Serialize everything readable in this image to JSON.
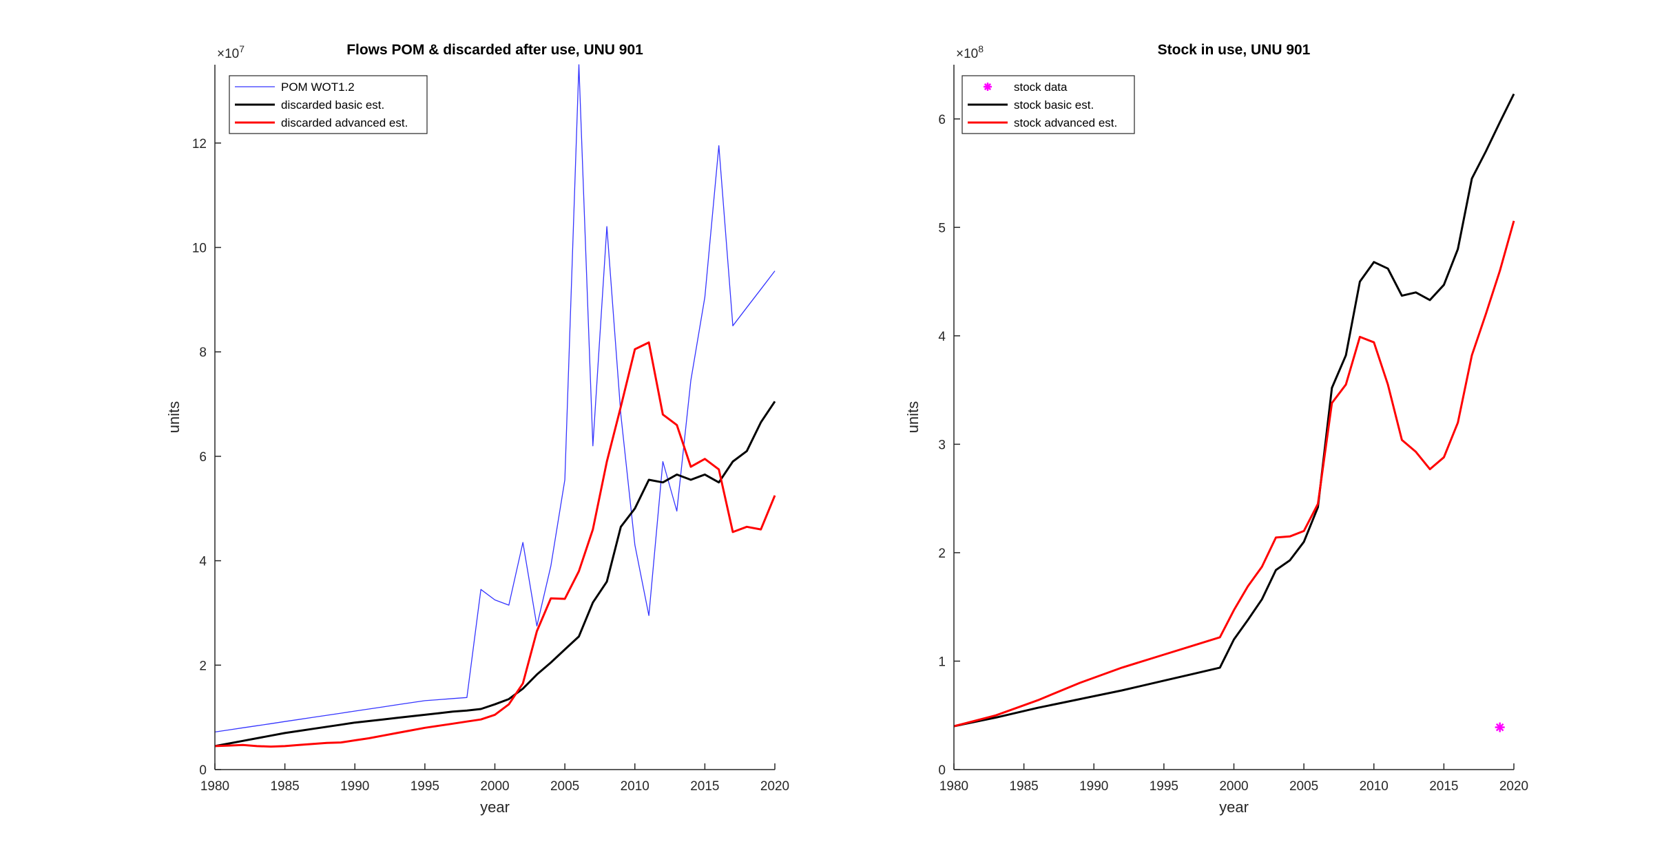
{
  "chart_data": [
    {
      "type": "line",
      "title": "Flows POM & discarded after use, UNU 901",
      "xlabel": "year",
      "ylabel": "units",
      "y_exponent_label": "×10",
      "y_exponent": "7",
      "xlim": [
        1980,
        2020
      ],
      "ylim": [
        0,
        13.5
      ],
      "xticks": [
        "1980",
        "1985",
        "1990",
        "1995",
        "2000",
        "2005",
        "2010",
        "2015",
        "2020"
      ],
      "yticks": [
        "0",
        "2",
        "4",
        "6",
        "8",
        "10",
        "12"
      ],
      "legend_position": "top-left",
      "series": [
        {
          "name": "POM WOT1.2",
          "color": "#3333ff",
          "width": 1.3,
          "x": [
            1980,
            1981,
            1982,
            1983,
            1984,
            1985,
            1986,
            1987,
            1988,
            1989,
            1990,
            1991,
            1992,
            1993,
            1994,
            1995,
            1996,
            1997,
            1998,
            1999,
            2000,
            2001,
            2002,
            2003,
            2004,
            2005,
            2006,
            2007,
            2008,
            2009,
            2010,
            2011,
            2012,
            2013,
            2014,
            2015,
            2016,
            2017,
            2018,
            2019,
            2020
          ],
          "values": [
            0.72,
            0.76,
            0.8,
            0.84,
            0.88,
            0.92,
            0.96,
            1.0,
            1.04,
            1.08,
            1.12,
            1.16,
            1.2,
            1.24,
            1.28,
            1.32,
            1.34,
            1.36,
            1.38,
            3.45,
            3.25,
            3.15,
            4.35,
            2.75,
            3.9,
            5.55,
            13.5,
            6.2,
            10.4,
            6.8,
            4.3,
            2.95,
            5.9,
            4.95,
            7.45,
            9.05,
            11.95,
            8.5,
            8.85,
            9.2,
            9.55
          ]
        },
        {
          "name": "discarded basic est.",
          "color": "#000000",
          "width": 3,
          "x": [
            1980,
            1981,
            1982,
            1983,
            1984,
            1985,
            1986,
            1987,
            1988,
            1989,
            1990,
            1991,
            1992,
            1993,
            1994,
            1995,
            1996,
            1997,
            1998,
            1999,
            2000,
            2001,
            2002,
            2003,
            2004,
            2005,
            2006,
            2007,
            2008,
            2009,
            2010,
            2011,
            2012,
            2013,
            2014,
            2015,
            2016,
            2017,
            2018,
            2019,
            2020
          ],
          "values": [
            0.45,
            0.5,
            0.55,
            0.6,
            0.65,
            0.7,
            0.74,
            0.78,
            0.82,
            0.86,
            0.9,
            0.93,
            0.96,
            0.99,
            1.02,
            1.05,
            1.08,
            1.11,
            1.13,
            1.16,
            1.25,
            1.35,
            1.55,
            1.82,
            2.05,
            2.3,
            2.55,
            3.2,
            3.6,
            4.65,
            5.0,
            5.55,
            5.5,
            5.65,
            5.55,
            5.65,
            5.5,
            5.9,
            6.1,
            6.65,
            7.05
          ]
        },
        {
          "name": "discarded advanced est.",
          "color": "#ff0000",
          "width": 3,
          "x": [
            1980,
            1981,
            1982,
            1983,
            1984,
            1985,
            1986,
            1987,
            1988,
            1989,
            1990,
            1991,
            1992,
            1993,
            1994,
            1995,
            1996,
            1997,
            1998,
            1999,
            2000,
            2001,
            2002,
            2003,
            2004,
            2005,
            2006,
            2007,
            2008,
            2009,
            2010,
            2011,
            2012,
            2013,
            2014,
            2015,
            2016,
            2017,
            2018,
            2019,
            2020
          ],
          "values": [
            0.45,
            0.46,
            0.47,
            0.45,
            0.44,
            0.45,
            0.47,
            0.49,
            0.51,
            0.52,
            0.56,
            0.6,
            0.65,
            0.7,
            0.75,
            0.8,
            0.84,
            0.88,
            0.92,
            0.96,
            1.05,
            1.25,
            1.65,
            2.65,
            3.28,
            3.27,
            3.8,
            4.6,
            5.9,
            6.95,
            8.05,
            8.18,
            6.8,
            6.6,
            5.8,
            5.95,
            5.75,
            4.55,
            4.65,
            4.6,
            5.25
          ]
        }
      ]
    },
    {
      "type": "line",
      "title": "Stock in use, UNU 901",
      "xlabel": "year",
      "ylabel": "units",
      "y_exponent_label": "×10",
      "y_exponent": "8",
      "xlim": [
        1980,
        2020
      ],
      "ylim": [
        0,
        6.5
      ],
      "xticks": [
        "1980",
        "1985",
        "1990",
        "1995",
        "2000",
        "2005",
        "2010",
        "2015",
        "2020"
      ],
      "yticks": [
        "0",
        "1",
        "2",
        "3",
        "4",
        "5",
        "6"
      ],
      "legend_position": "top-left",
      "series": [
        {
          "name": "stock data",
          "color": "#ff00ff",
          "marker": "*",
          "x": [
            2019
          ],
          "values": [
            0.39
          ]
        },
        {
          "name": "stock basic est.",
          "color": "#000000",
          "width": 3,
          "x": [
            1980,
            1983,
            1986,
            1989,
            1992,
            1995,
            1997,
            1999,
            2000,
            2001,
            2002,
            2003,
            2004,
            2005,
            2006,
            2007,
            2008,
            2009,
            2010,
            2011,
            2012,
            2013,
            2014,
            2015,
            2016,
            2017,
            2018,
            2019,
            2020
          ],
          "values": [
            0.4,
            0.48,
            0.57,
            0.65,
            0.73,
            0.82,
            0.88,
            0.94,
            1.2,
            1.38,
            1.57,
            1.84,
            1.93,
            2.1,
            2.42,
            3.52,
            3.82,
            4.5,
            4.68,
            4.62,
            4.37,
            4.4,
            4.33,
            4.47,
            4.8,
            5.45,
            5.7,
            5.97,
            6.23
          ]
        },
        {
          "name": "stock advanced est.",
          "color": "#ff0000",
          "width": 3,
          "x": [
            1980,
            1983,
            1986,
            1989,
            1992,
            1995,
            1997,
            1999,
            2000,
            2001,
            2002,
            2003,
            2004,
            2005,
            2006,
            2007,
            2008,
            2009,
            2010,
            2011,
            2012,
            2013,
            2014,
            2015,
            2016,
            2017,
            2018,
            2019,
            2020
          ],
          "values": [
            0.4,
            0.5,
            0.64,
            0.8,
            0.94,
            1.06,
            1.14,
            1.22,
            1.47,
            1.69,
            1.87,
            2.14,
            2.15,
            2.2,
            2.45,
            3.38,
            3.55,
            3.99,
            3.94,
            3.55,
            3.04,
            2.93,
            2.77,
            2.88,
            3.2,
            3.82,
            4.2,
            4.6,
            5.06
          ]
        }
      ]
    }
  ]
}
